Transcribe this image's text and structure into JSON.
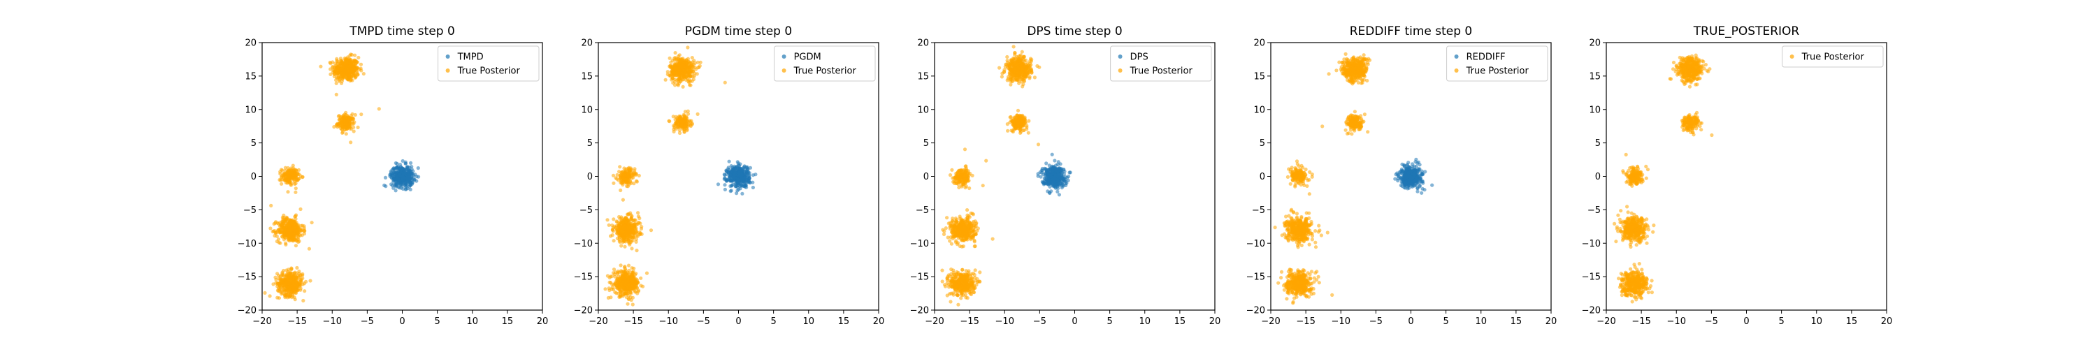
{
  "colors": {
    "sample": "#1f77b4",
    "posterior": "#ffa500",
    "axis": "#000000",
    "legend_border": "#cccccc"
  },
  "chart_data": [
    {
      "type": "scatter",
      "title": "TMPD time step 0",
      "xlim": [
        -20,
        20
      ],
      "ylim": [
        -20,
        20
      ],
      "xticks": [
        -20,
        -15,
        -10,
        -5,
        0,
        5,
        10,
        15,
        20
      ],
      "yticks": [
        -20,
        -15,
        -10,
        -5,
        0,
        5,
        10,
        15,
        20
      ],
      "grid": false,
      "legend_position": "top-right",
      "series": [
        {
          "name": "TMPD",
          "color": "#1f77b4",
          "clusters": [
            {
              "center": [
                0,
                0
              ],
              "spread": 0.8
            }
          ]
        },
        {
          "name": "True Posterior",
          "color": "#ffa500",
          "clusters": [
            {
              "center": [
                -8,
                16
              ],
              "spread": 0.9
            },
            {
              "center": [
                -8,
                8
              ],
              "spread": 0.6
            },
            {
              "center": [
                -16,
                0
              ],
              "spread": 0.6
            },
            {
              "center": [
                -16,
                -8
              ],
              "spread": 0.9
            },
            {
              "center": [
                -16,
                -16
              ],
              "spread": 0.9
            }
          ]
        }
      ]
    },
    {
      "type": "scatter",
      "title": "PGDM time step 0",
      "xlim": [
        -20,
        20
      ],
      "ylim": [
        -20,
        20
      ],
      "xticks": [
        -20,
        -15,
        -10,
        -5,
        0,
        5,
        10,
        15,
        20
      ],
      "yticks": [
        -20,
        -15,
        -10,
        -5,
        0,
        5,
        10,
        15,
        20
      ],
      "grid": false,
      "legend_position": "top-right",
      "series": [
        {
          "name": "PGDM",
          "color": "#1f77b4",
          "clusters": [
            {
              "center": [
                0,
                0
              ],
              "spread": 0.8
            }
          ]
        },
        {
          "name": "True Posterior",
          "color": "#ffa500",
          "clusters": [
            {
              "center": [
                -8,
                16
              ],
              "spread": 0.9
            },
            {
              "center": [
                -8,
                8
              ],
              "spread": 0.6
            },
            {
              "center": [
                -16,
                0
              ],
              "spread": 0.6
            },
            {
              "center": [
                -16,
                -8
              ],
              "spread": 0.9
            },
            {
              "center": [
                -16,
                -16
              ],
              "spread": 0.9
            }
          ]
        }
      ]
    },
    {
      "type": "scatter",
      "title": "DPS time step 0",
      "xlim": [
        -20,
        20
      ],
      "ylim": [
        -20,
        20
      ],
      "xticks": [
        -20,
        -15,
        -10,
        -5,
        0,
        5,
        10,
        15,
        20
      ],
      "yticks": [
        -20,
        -15,
        -10,
        -5,
        0,
        5,
        10,
        15,
        20
      ],
      "grid": false,
      "legend_position": "top-right",
      "series": [
        {
          "name": "DPS",
          "color": "#1f77b4",
          "clusters": [
            {
              "center": [
                -3,
                0
              ],
              "spread": 0.8
            }
          ]
        },
        {
          "name": "True Posterior",
          "color": "#ffa500",
          "clusters": [
            {
              "center": [
                -8,
                16
              ],
              "spread": 0.9
            },
            {
              "center": [
                -8,
                8
              ],
              "spread": 0.6
            },
            {
              "center": [
                -16,
                0
              ],
              "spread": 0.6
            },
            {
              "center": [
                -16,
                -8
              ],
              "spread": 0.9
            },
            {
              "center": [
                -16,
                -16
              ],
              "spread": 0.9
            }
          ]
        }
      ]
    },
    {
      "type": "scatter",
      "title": "REDDIFF time step 0",
      "xlim": [
        -20,
        20
      ],
      "ylim": [
        -20,
        20
      ],
      "xticks": [
        -20,
        -15,
        -10,
        -5,
        0,
        5,
        10,
        15,
        20
      ],
      "yticks": [
        -20,
        -15,
        -10,
        -5,
        0,
        5,
        10,
        15,
        20
      ],
      "grid": false,
      "legend_position": "top-right",
      "series": [
        {
          "name": "REDDIFF",
          "color": "#1f77b4",
          "clusters": [
            {
              "center": [
                0,
                0
              ],
              "spread": 0.8
            }
          ]
        },
        {
          "name": "True Posterior",
          "color": "#ffa500",
          "clusters": [
            {
              "center": [
                -8,
                16
              ],
              "spread": 0.9
            },
            {
              "center": [
                -8,
                8
              ],
              "spread": 0.6
            },
            {
              "center": [
                -16,
                0
              ],
              "spread": 0.6
            },
            {
              "center": [
                -16,
                -8
              ],
              "spread": 0.9
            },
            {
              "center": [
                -16,
                -16
              ],
              "spread": 0.9
            }
          ]
        }
      ]
    },
    {
      "type": "scatter",
      "title": "TRUE_POSTERIOR",
      "xlim": [
        -20,
        20
      ],
      "ylim": [
        -20,
        20
      ],
      "xticks": [
        -20,
        -15,
        -10,
        -5,
        0,
        5,
        10,
        15,
        20
      ],
      "yticks": [
        -20,
        -15,
        -10,
        -5,
        0,
        5,
        10,
        15,
        20
      ],
      "grid": false,
      "legend_position": "top-right",
      "series": [
        {
          "name": "True Posterior",
          "color": "#ffa500",
          "clusters": [
            {
              "center": [
                -8,
                16
              ],
              "spread": 0.9
            },
            {
              "center": [
                -8,
                8
              ],
              "spread": 0.6
            },
            {
              "center": [
                -16,
                0
              ],
              "spread": 0.6
            },
            {
              "center": [
                -16,
                -8
              ],
              "spread": 0.9
            },
            {
              "center": [
                -16,
                -16
              ],
              "spread": 0.9
            }
          ]
        }
      ]
    }
  ]
}
